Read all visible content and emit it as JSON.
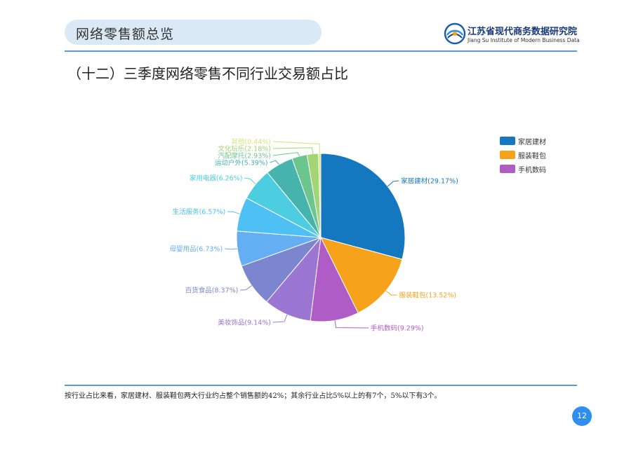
{
  "header": {
    "title": "网络零售额总览"
  },
  "logo": {
    "name_cn": "江苏省现代商务数据研究院",
    "name_en": "Jiang Su Institute of Modern Business Data"
  },
  "section": {
    "title": "（十二）三季度网络零售不同行业交易额占比"
  },
  "chart_data": {
    "type": "pie",
    "title": "",
    "unit": "%",
    "legend_position": "right",
    "legend": [
      "家居建材",
      "服装鞋包",
      "手机数码"
    ],
    "slices": [
      {
        "label": "家居建材(29.17%)",
        "name": "家居建材",
        "value": 29.17,
        "color": "#1478c0"
      },
      {
        "label": "服装鞋包(13.52%)",
        "name": "服装鞋包",
        "value": 13.52,
        "color": "#f7a21b"
      },
      {
        "label": "手机数码(9.29%)",
        "name": "手机数码",
        "value": 9.29,
        "color": "#b05cc6"
      },
      {
        "label": "美妆饰品(9.14%)",
        "name": "美妆饰品",
        "value": 9.14,
        "color": "#9b76d3"
      },
      {
        "label": "百货食品(8.37%)",
        "name": "百货食品",
        "value": 8.37,
        "color": "#7b86cf"
      },
      {
        "label": "母婴用品(6.73%)",
        "name": "母婴用品",
        "value": 6.73,
        "color": "#64aef3"
      },
      {
        "label": "生活服务(6.57%)",
        "name": "生活服务",
        "value": 6.57,
        "color": "#4fc0f3"
      },
      {
        "label": "家用电器(6.26%)",
        "name": "家用电器",
        "value": 6.26,
        "color": "#4ccde0"
      },
      {
        "label": "运动户外(5.39%)",
        "name": "运动户外",
        "value": 5.39,
        "color": "#46b3ad"
      },
      {
        "label": "汽配摩托(2.93%)",
        "name": "汽配摩托",
        "value": 2.93,
        "color": "#6cc58c"
      },
      {
        "label": "文化玩乐(2.18%)",
        "name": "文化玩乐",
        "value": 2.18,
        "color": "#a3d576"
      },
      {
        "label": "其他(0.44%)",
        "name": "其他",
        "value": 0.44,
        "color": "#d9e27a"
      }
    ]
  },
  "footer": {
    "note": "按行业占比来看，家居建材、服装鞋包两大行业约占整个销售额的42%；其余行业占比5%以上的有7个，5%以下有3个。"
  },
  "page": {
    "number": "12"
  }
}
